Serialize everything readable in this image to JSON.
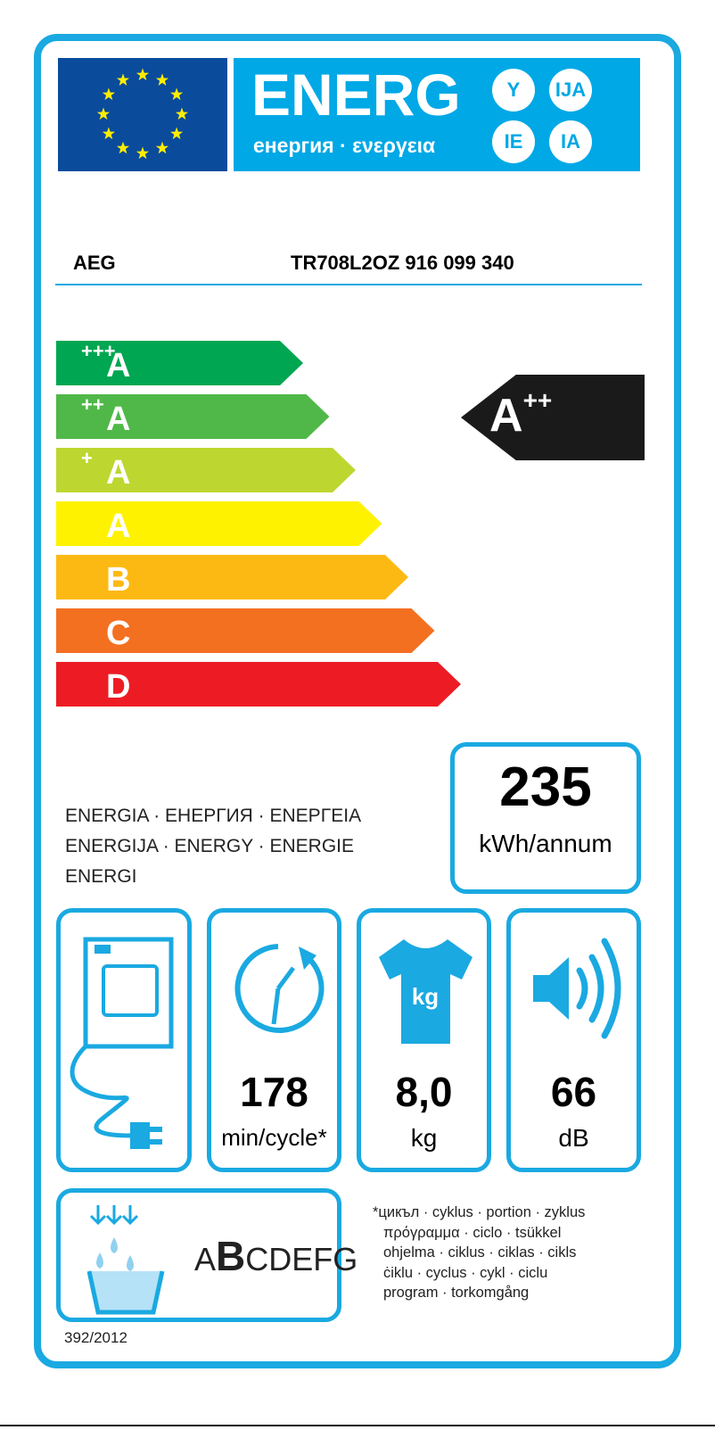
{
  "header": {
    "energy_word": "ENERG",
    "energy_subtitle": "енергия · ενεργεια",
    "suffixes": [
      "Y",
      "IJA",
      "IE",
      "IA"
    ]
  },
  "supplier": "AEG",
  "model": "TR708L2OZ  916 099 340",
  "scale": [
    {
      "label": "A",
      "sup": "+++",
      "color": "#00a651"
    },
    {
      "label": "A",
      "sup": "++",
      "color": "#50b848"
    },
    {
      "label": "A",
      "sup": "+",
      "color": "#bed630"
    },
    {
      "label": "A",
      "sup": "",
      "color": "#fff200"
    },
    {
      "label": "B",
      "sup": "",
      "color": "#fdb913"
    },
    {
      "label": "C",
      "sup": "",
      "color": "#f37021"
    },
    {
      "label": "D",
      "sup": "",
      "color": "#ed1c24"
    }
  ],
  "rating": {
    "label": "A",
    "sup": "++"
  },
  "energy_text": [
    "ENERGIA · ЕНЕРГИЯ · ΕΝΕΡΓΕΙΑ",
    "ENERGIJA · ENERGY · ENERGIE",
    "ENERGI"
  ],
  "consumption": {
    "value": "235",
    "unit": "kWh/annum"
  },
  "tiles": {
    "time": {
      "value": "178",
      "unit": "min/cycle*"
    },
    "capacity": {
      "value": "8,0",
      "unit": "kg",
      "icon_text": "kg"
    },
    "noise": {
      "value": "66",
      "unit": "dB"
    }
  },
  "condensation": {
    "pre": "A",
    "bold": "B",
    "post": "CDEFG"
  },
  "footnote": [
    "*цикъл · cyklus · portion · zyklus",
    "πρόγραμμα · ciclo · tsükkel",
    "ohjelma · ciklus · ciklas · cikls",
    "ċiklu · cyclus · cykl · ciclu",
    "program · torkomgång"
  ],
  "regulation": "392/2012",
  "colors": {
    "accent": "#1aa9e1",
    "eu_blue": "#0a4b9c"
  }
}
